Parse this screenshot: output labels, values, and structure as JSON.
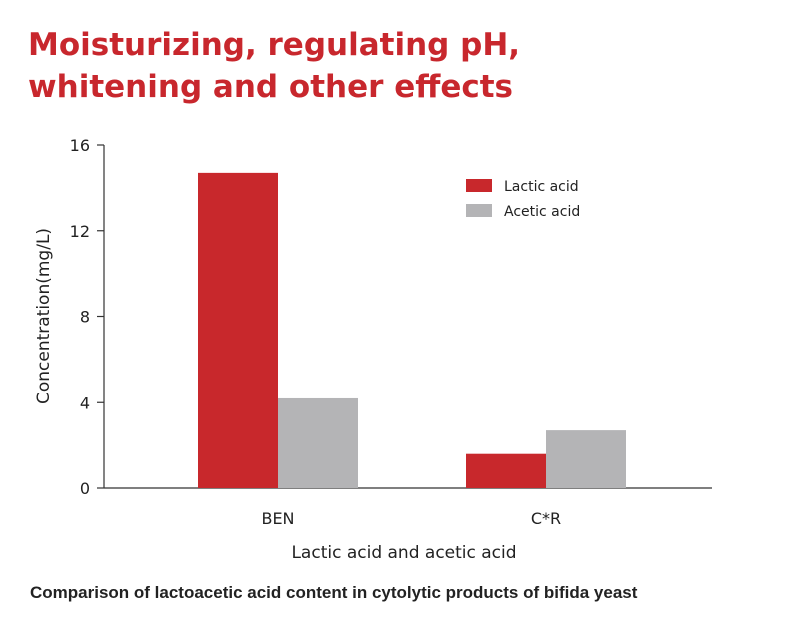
{
  "page": {
    "title_line1": "Moisturizing, regulating pH,",
    "title_line2": "whitening and other effects",
    "caption": "Comparison of lactoacetic acid content in cytolytic products of bifida yeast"
  },
  "colors": {
    "title": "#c8272d",
    "lactic": "#c8282c",
    "acetic": "#b4b4b6"
  },
  "chart_data": {
    "type": "bar",
    "categories": [
      "BEN",
      "C*R"
    ],
    "series": [
      {
        "name": "Lactic acid",
        "values": [
          14.7,
          1.6
        ]
      },
      {
        "name": "Acetic acid",
        "values": [
          4.2,
          2.7
        ]
      }
    ],
    "xlabel": "Lactic acid and acetic acid",
    "ylabel": "Concentration(mg/L)",
    "ylim": [
      0,
      16
    ],
    "yticks": [
      0,
      4,
      8,
      12,
      16
    ],
    "grid": false,
    "legend": "top-right"
  }
}
